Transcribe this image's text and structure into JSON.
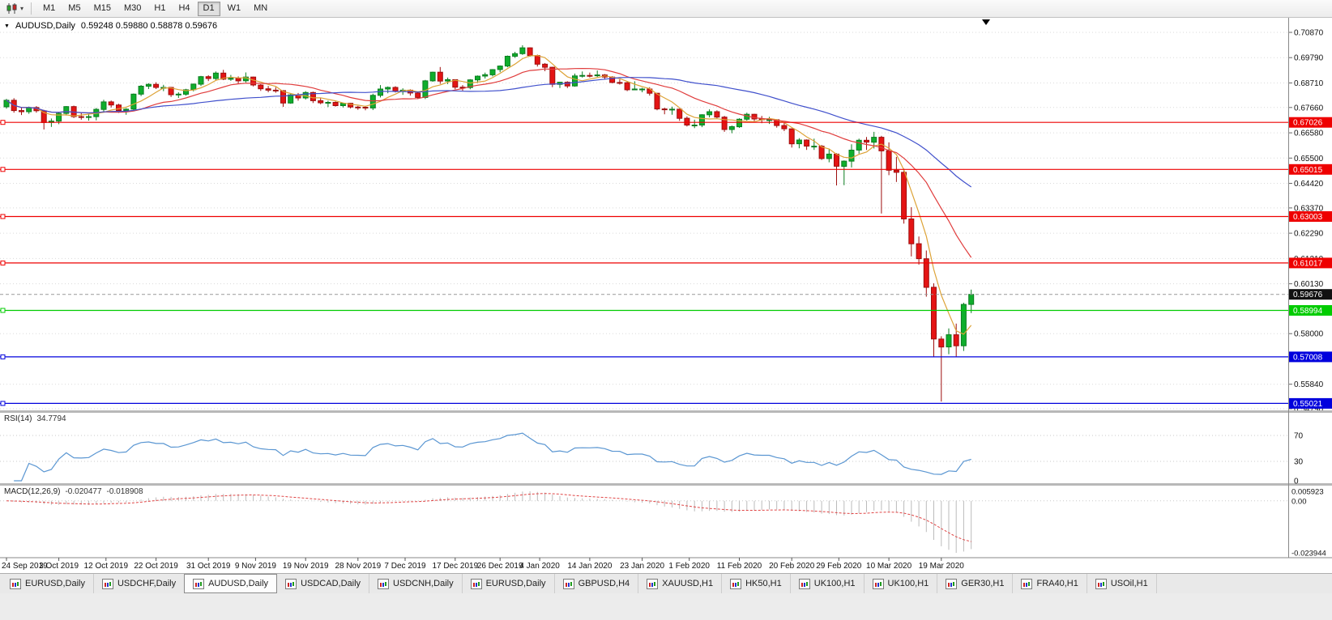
{
  "toolbar": {
    "timeframes": [
      "M1",
      "M5",
      "M15",
      "M30",
      "H1",
      "H4",
      "D1",
      "W1",
      "MN"
    ],
    "active_timeframe": "D1"
  },
  "tabs": [
    "EURUSD,Daily",
    "USDCHF,Daily",
    "AUDUSD,Daily",
    "USDCAD,Daily",
    "USDCNH,Daily",
    "EURUSD,Daily",
    "GBPUSD,H4",
    "XAUUSD,H1",
    "HK50,H1",
    "UK100,H1",
    "UK100,H1",
    "GER30,H1",
    "FRA40,H1",
    "USOil,H1"
  ],
  "active_tab_index": 2,
  "icons": {
    "toolbar_chart_type": "candlestick-chart-icon",
    "toolbar_dropdown": "chevron-down-icon",
    "title_collapse": "triangle-down-icon",
    "tab_icon": "mini-chart-icon",
    "shift_marker": "triangle-down-marker"
  },
  "chart_data": {
    "type": "candlestick",
    "symbol": "AUDUSD",
    "timeframe": "Daily",
    "title": "AUDUSD,Daily",
    "ohlc_line": "0.59248 0.59880 0.58878 0.59676",
    "last_candle": {
      "open": 0.59248,
      "high": 0.5988,
      "low": 0.58878,
      "close": 0.59676
    },
    "current_price": 0.59676,
    "y_axis_ticks": [
      0.7087,
      0.6979,
      0.6871,
      0.6766,
      0.6658,
      0.655,
      0.6442,
      0.6337,
      0.6229,
      0.6121,
      0.6013,
      0.58,
      0.5584,
      0.5479
    ],
    "x_axis_labels": [
      {
        "text": "24 Sep 2019",
        "i": 0
      },
      {
        "text": "3 Oct 2019",
        "i": 7
      },
      {
        "text": "12 Oct 2019",
        "i": 13.3
      },
      {
        "text": "22 Oct 2019",
        "i": 20
      },
      {
        "text": "31 Oct 2019",
        "i": 27
      },
      {
        "text": "9 Nov 2019",
        "i": 33.3
      },
      {
        "text": "19 Nov 2019",
        "i": 40
      },
      {
        "text": "28 Nov 2019",
        "i": 47
      },
      {
        "text": "7 Dec 2019",
        "i": 53.3
      },
      {
        "text": "17 Dec 2019",
        "i": 60
      },
      {
        "text": "26 Dec 2019",
        "i": 66
      },
      {
        "text": "4 Jan 2020",
        "i": 71.3
      },
      {
        "text": "14 Jan 2020",
        "i": 78
      },
      {
        "text": "23 Jan 2020",
        "i": 85
      },
      {
        "text": "1 Feb 2020",
        "i": 91.3
      },
      {
        "text": "11 Feb 2020",
        "i": 98
      },
      {
        "text": "20 Feb 2020",
        "i": 105
      },
      {
        "text": "29 Feb 2020",
        "i": 111.3
      },
      {
        "text": "10 Mar 2020",
        "i": 118
      },
      {
        "text": "19 Mar 2020",
        "i": 125
      }
    ],
    "horizontal_lines": [
      {
        "price": 0.67026,
        "label": "0.67026",
        "color": "#ee0000",
        "type": "resistance"
      },
      {
        "price": 0.65015,
        "label": "0.65015",
        "color": "#ee0000",
        "type": "resistance"
      },
      {
        "price": 0.63003,
        "label": "0.63003",
        "color": "#ee0000",
        "type": "resistance"
      },
      {
        "price": 0.61017,
        "label": "0.61017",
        "color": "#ee0000",
        "type": "resistance"
      },
      {
        "price": 0.58994,
        "label": "0.58994",
        "color": "#00cc00",
        "type": "support"
      },
      {
        "price": 0.57008,
        "label": "0.57008",
        "color": "#0000dd",
        "type": "support"
      },
      {
        "price": 0.55021,
        "label": "0.55021",
        "color": "#0000dd",
        "type": "support"
      }
    ],
    "moving_averages": [
      {
        "period": 5,
        "color": "#dda337"
      },
      {
        "period": 14,
        "color": "#e03c3c"
      },
      {
        "period": 34,
        "color": "#4050cc"
      }
    ],
    "indicators": {
      "rsi": {
        "label": "RSI(14)",
        "period": 14,
        "value": "34.7794",
        "levels": [
          70,
          30,
          0
        ],
        "color": "#5a96d2"
      },
      "macd": {
        "label": "MACD(12,26,9)",
        "fast": 12,
        "slow": 26,
        "signal_period": 9,
        "value_main": "-0.020477",
        "value_signal": "-0.018908",
        "axis_labels": [
          "0.005923",
          "0.00",
          "-0.023944"
        ]
      }
    },
    "colors": {
      "up": "#0fae2c",
      "up_border": "#0a7d1f",
      "down": "#e41414",
      "down_border": "#9e0e0e",
      "macd_hist": "#bbbbbb",
      "macd_signal": "#e04545",
      "grid": "#dadada",
      "current_badge": "#111111"
    },
    "candles": [
      [
        0.6769,
        0.6803,
        0.6761,
        0.6797
      ],
      [
        0.6797,
        0.6806,
        0.6744,
        0.6753
      ],
      [
        0.6753,
        0.6764,
        0.6734,
        0.6748
      ],
      [
        0.6748,
        0.677,
        0.6739,
        0.6766
      ],
      [
        0.6766,
        0.6772,
        0.6744,
        0.6752
      ],
      [
        0.6752,
        0.6756,
        0.6672,
        0.6702
      ],
      [
        0.6702,
        0.6719,
        0.6683,
        0.6708
      ],
      [
        0.6708,
        0.6745,
        0.6695,
        0.6741
      ],
      [
        0.6741,
        0.6772,
        0.6732,
        0.677
      ],
      [
        0.677,
        0.6774,
        0.6721,
        0.6727
      ],
      [
        0.6727,
        0.6744,
        0.6714,
        0.6724
      ],
      [
        0.6724,
        0.6737,
        0.671,
        0.6727
      ],
      [
        0.6727,
        0.6764,
        0.6711,
        0.6758
      ],
      [
        0.6758,
        0.6799,
        0.6748,
        0.679
      ],
      [
        0.679,
        0.6796,
        0.6766,
        0.6777
      ],
      [
        0.6777,
        0.6782,
        0.6743,
        0.6753
      ],
      [
        0.6753,
        0.6763,
        0.6735,
        0.6759
      ],
      [
        0.6759,
        0.6826,
        0.6753,
        0.6823
      ],
      [
        0.6823,
        0.6862,
        0.6815,
        0.6857
      ],
      [
        0.6857,
        0.687,
        0.6845,
        0.6865
      ],
      [
        0.6865,
        0.6874,
        0.6845,
        0.6852
      ],
      [
        0.6852,
        0.6863,
        0.6836,
        0.6852
      ],
      [
        0.6852,
        0.6854,
        0.6811,
        0.6821
      ],
      [
        0.6821,
        0.6831,
        0.6807,
        0.6823
      ],
      [
        0.6823,
        0.6846,
        0.6817,
        0.6842
      ],
      [
        0.6842,
        0.6868,
        0.6835,
        0.6866
      ],
      [
        0.6866,
        0.6901,
        0.6858,
        0.6898
      ],
      [
        0.6898,
        0.6904,
        0.6879,
        0.689
      ],
      [
        0.689,
        0.692,
        0.6882,
        0.6913
      ],
      [
        0.6913,
        0.6927,
        0.6883,
        0.6887
      ],
      [
        0.6887,
        0.6905,
        0.688,
        0.6891
      ],
      [
        0.6891,
        0.6899,
        0.6866,
        0.688
      ],
      [
        0.688,
        0.6916,
        0.6873,
        0.6896
      ],
      [
        0.6896,
        0.6898,
        0.6856,
        0.6862
      ],
      [
        0.6862,
        0.6866,
        0.6837,
        0.6846
      ],
      [
        0.6846,
        0.6858,
        0.6831,
        0.684
      ],
      [
        0.684,
        0.6853,
        0.6829,
        0.6838
      ],
      [
        0.6838,
        0.684,
        0.6769,
        0.6785
      ],
      [
        0.6785,
        0.6824,
        0.6782,
        0.682
      ],
      [
        0.682,
        0.6828,
        0.6795,
        0.6807
      ],
      [
        0.6807,
        0.6836,
        0.68,
        0.683
      ],
      [
        0.683,
        0.6834,
        0.6785,
        0.6795
      ],
      [
        0.6795,
        0.6806,
        0.678,
        0.6786
      ],
      [
        0.6786,
        0.6795,
        0.6768,
        0.6788
      ],
      [
        0.6788,
        0.6792,
        0.677,
        0.6774
      ],
      [
        0.6774,
        0.6787,
        0.6766,
        0.6784
      ],
      [
        0.6784,
        0.6785,
        0.6762,
        0.6768
      ],
      [
        0.6768,
        0.6773,
        0.6756,
        0.6767
      ],
      [
        0.6767,
        0.6773,
        0.6754,
        0.6764
      ],
      [
        0.6764,
        0.6825,
        0.6755,
        0.6818
      ],
      [
        0.6818,
        0.6862,
        0.6809,
        0.6845
      ],
      [
        0.6845,
        0.6856,
        0.6827,
        0.6852
      ],
      [
        0.6852,
        0.6857,
        0.683,
        0.6836
      ],
      [
        0.6836,
        0.6848,
        0.682,
        0.684
      ],
      [
        0.684,
        0.6844,
        0.6817,
        0.6828
      ],
      [
        0.6828,
        0.6835,
        0.6802,
        0.6809
      ],
      [
        0.6809,
        0.6884,
        0.6802,
        0.688
      ],
      [
        0.688,
        0.6919,
        0.6876,
        0.6917
      ],
      [
        0.6917,
        0.6939,
        0.6867,
        0.6879
      ],
      [
        0.6879,
        0.6894,
        0.6866,
        0.6885
      ],
      [
        0.6885,
        0.6886,
        0.6844,
        0.6853
      ],
      [
        0.6853,
        0.6862,
        0.6838,
        0.6851
      ],
      [
        0.6851,
        0.6887,
        0.6844,
        0.6884
      ],
      [
        0.6884,
        0.6903,
        0.6871,
        0.69
      ],
      [
        0.69,
        0.6915,
        0.689,
        0.6906
      ],
      [
        0.6906,
        0.693,
        0.6899,
        0.6928
      ],
      [
        0.6928,
        0.6946,
        0.6917,
        0.6943
      ],
      [
        0.6943,
        0.6988,
        0.6938,
        0.6985
      ],
      [
        0.6985,
        0.7004,
        0.6978,
        0.6996
      ],
      [
        0.6996,
        0.7032,
        0.6991,
        0.7021
      ],
      [
        0.7021,
        0.7023,
        0.6983,
        0.6988
      ],
      [
        0.6988,
        0.6992,
        0.6941,
        0.6951
      ],
      [
        0.6951,
        0.6956,
        0.6921,
        0.6938
      ],
      [
        0.6938,
        0.694,
        0.6853,
        0.6865
      ],
      [
        0.6865,
        0.6876,
        0.6849,
        0.6874
      ],
      [
        0.6874,
        0.6878,
        0.6849,
        0.6858
      ],
      [
        0.6858,
        0.6911,
        0.6855,
        0.6901
      ],
      [
        0.6901,
        0.692,
        0.6894,
        0.6903
      ],
      [
        0.6903,
        0.6915,
        0.6894,
        0.6902
      ],
      [
        0.6902,
        0.6924,
        0.6896,
        0.6905
      ],
      [
        0.6905,
        0.6909,
        0.6885,
        0.6896
      ],
      [
        0.6896,
        0.69,
        0.687,
        0.6873
      ],
      [
        0.6873,
        0.6886,
        0.6864,
        0.6872
      ],
      [
        0.6872,
        0.6876,
        0.6836,
        0.6842
      ],
      [
        0.6842,
        0.6878,
        0.684,
        0.6845
      ],
      [
        0.6845,
        0.685,
        0.6831,
        0.6845
      ],
      [
        0.6845,
        0.6853,
        0.6817,
        0.6827
      ],
      [
        0.6827,
        0.6828,
        0.6754,
        0.676
      ],
      [
        0.676,
        0.6765,
        0.6737,
        0.6757
      ],
      [
        0.6757,
        0.677,
        0.6735,
        0.6759
      ],
      [
        0.6759,
        0.6761,
        0.6709,
        0.672
      ],
      [
        0.672,
        0.6728,
        0.6685,
        0.6691
      ],
      [
        0.6691,
        0.6714,
        0.6678,
        0.6691
      ],
      [
        0.6691,
        0.6737,
        0.6682,
        0.6735
      ],
      [
        0.6735,
        0.6758,
        0.6724,
        0.6748
      ],
      [
        0.6748,
        0.6754,
        0.672,
        0.6725
      ],
      [
        0.6725,
        0.673,
        0.6662,
        0.6672
      ],
      [
        0.6672,
        0.6689,
        0.6656,
        0.6684
      ],
      [
        0.6684,
        0.672,
        0.6679,
        0.6716
      ],
      [
        0.6716,
        0.6744,
        0.671,
        0.6737
      ],
      [
        0.6737,
        0.6739,
        0.6708,
        0.6717
      ],
      [
        0.6717,
        0.673,
        0.6699,
        0.6714
      ],
      [
        0.6714,
        0.6726,
        0.6696,
        0.6714
      ],
      [
        0.6714,
        0.6716,
        0.668,
        0.6689
      ],
      [
        0.6689,
        0.67,
        0.6665,
        0.6675
      ],
      [
        0.6675,
        0.6677,
        0.6595,
        0.6611
      ],
      [
        0.6611,
        0.6635,
        0.6592,
        0.6627
      ],
      [
        0.6627,
        0.663,
        0.6585,
        0.6601
      ],
      [
        0.6601,
        0.6633,
        0.6585,
        0.6601
      ],
      [
        0.6601,
        0.6606,
        0.6542,
        0.6548
      ],
      [
        0.6548,
        0.659,
        0.6532,
        0.6567
      ],
      [
        0.6567,
        0.6571,
        0.6433,
        0.6515
      ],
      [
        0.6515,
        0.654,
        0.6434,
        0.6537
      ],
      [
        0.6537,
        0.6609,
        0.651,
        0.6584
      ],
      [
        0.6584,
        0.6633,
        0.6569,
        0.6626
      ],
      [
        0.6626,
        0.664,
        0.6585,
        0.6618
      ],
      [
        0.6618,
        0.6662,
        0.6591,
        0.6639
      ],
      [
        0.6639,
        0.6645,
        0.6313,
        0.6581
      ],
      [
        0.6581,
        0.6617,
        0.6477,
        0.6498
      ],
      [
        0.6498,
        0.6555,
        0.6448,
        0.6489
      ],
      [
        0.6489,
        0.6505,
        0.627,
        0.629
      ],
      [
        0.629,
        0.634,
        0.613,
        0.6184
      ],
      [
        0.6184,
        0.6215,
        0.6095,
        0.612
      ],
      [
        0.612,
        0.6155,
        0.5958,
        0.5998
      ],
      [
        0.5998,
        0.6015,
        0.5701,
        0.5777
      ],
      [
        0.5777,
        0.5789,
        0.551,
        0.5743
      ],
      [
        0.5743,
        0.5822,
        0.5712,
        0.5795
      ],
      [
        0.5795,
        0.5843,
        0.5702,
        0.5748
      ],
      [
        0.5748,
        0.5932,
        0.5726,
        0.59248
      ],
      [
        0.59248,
        0.5988,
        0.58878,
        0.59676
      ]
    ]
  }
}
